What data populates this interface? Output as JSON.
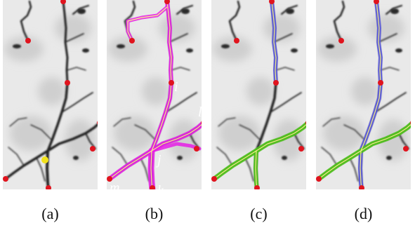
{
  "figure": {
    "panels": [
      {
        "caption": "(a)"
      },
      {
        "caption": "(b)",
        "labels": {
          "i": "i",
          "j": "j",
          "k": "k",
          "l": "l",
          "m": "m"
        }
      },
      {
        "caption": "(c)"
      },
      {
        "caption": "(d)"
      }
    ]
  },
  "colors": {
    "background": "#e9e9e9",
    "vessel": "#1e1e1e",
    "node": "#e0141e",
    "junction": "#f2e21c",
    "path_magenta": "#e61ee6",
    "path_green": "#4ec21a",
    "path_blue": "#5a5ae0",
    "centerline_yellow": "#f6f08a"
  }
}
